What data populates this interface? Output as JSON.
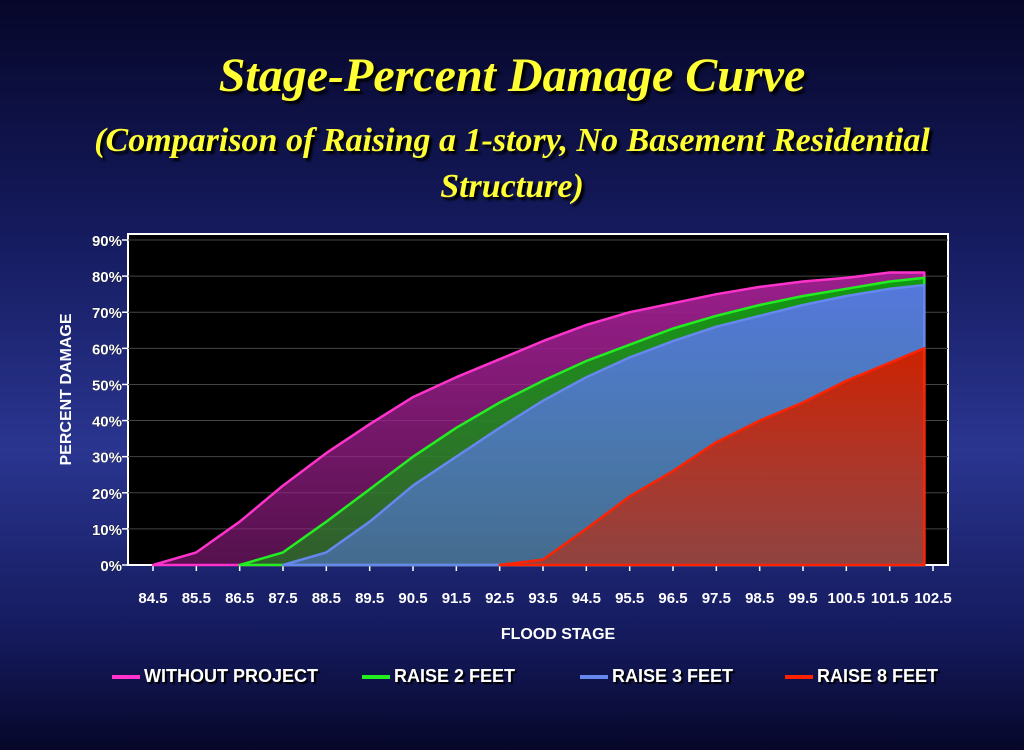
{
  "title": "Stage-Percent Damage Curve",
  "subtitle": "(Comparison of Raising a 1-story, No Basement Residential Structure)",
  "chart_data": {
    "type": "area",
    "title": "Stage-Percent Damage Curve",
    "subtitle": "(Comparison of Raising a 1-story, No Basement Residential Structure)",
    "xlabel": "FLOOD STAGE",
    "ylabel": "PERCENT DAMAGE",
    "categories": [
      "84.5",
      "85.5",
      "86.5",
      "87.5",
      "88.5",
      "89.5",
      "90.5",
      "91.5",
      "92.5",
      "93.5",
      "94.5",
      "95.5",
      "96.5",
      "97.5",
      "98.5",
      "99.5",
      "100.5",
      "101.5",
      "102.5"
    ],
    "y_ticks": [
      "0%",
      "10%",
      "20%",
      "30%",
      "40%",
      "50%",
      "60%",
      "70%",
      "80%",
      "90%"
    ],
    "ylim": [
      0,
      90
    ],
    "grid": true,
    "legend_position": "bottom",
    "series": [
      {
        "name": "WITHOUT PROJECT",
        "color": "#ff33cc",
        "fill": "#9b1f8c",
        "points": [
          [
            84.5,
            0
          ],
          [
            85.5,
            3.5
          ],
          [
            86.5,
            12
          ],
          [
            87.5,
            22
          ],
          [
            88.5,
            31
          ],
          [
            89.5,
            39
          ],
          [
            90.5,
            46.5
          ],
          [
            91.5,
            52
          ],
          [
            92.5,
            57
          ],
          [
            93.5,
            62
          ],
          [
            94.5,
            66.5
          ],
          [
            95.5,
            70
          ],
          [
            96.5,
            72.5
          ],
          [
            97.5,
            75
          ],
          [
            98.5,
            77
          ],
          [
            99.5,
            78.5
          ],
          [
            100.5,
            79.5
          ],
          [
            101.5,
            81
          ],
          [
            102.3,
            81
          ]
        ]
      },
      {
        "name": "RAISE 2 FEET",
        "color": "#22ee22",
        "fill": "#119911",
        "points": [
          [
            86.5,
            0
          ],
          [
            87.5,
            3.5
          ],
          [
            88.5,
            12
          ],
          [
            89.5,
            21
          ],
          [
            90.5,
            30
          ],
          [
            91.5,
            38
          ],
          [
            92.5,
            45
          ],
          [
            93.5,
            51
          ],
          [
            94.5,
            56.5
          ],
          [
            95.5,
            61
          ],
          [
            96.5,
            65.5
          ],
          [
            97.5,
            69
          ],
          [
            98.5,
            72
          ],
          [
            99.5,
            74.5
          ],
          [
            100.5,
            76.5
          ],
          [
            101.5,
            78.5
          ],
          [
            102.3,
            79.5
          ]
        ]
      },
      {
        "name": "RAISE 3 FEET",
        "color": "#6688ee",
        "fill": "#5577dd",
        "points": [
          [
            87.5,
            0
          ],
          [
            88.5,
            3.5
          ],
          [
            89.5,
            12
          ],
          [
            90.5,
            22
          ],
          [
            91.5,
            30
          ],
          [
            92.5,
            38
          ],
          [
            93.5,
            45.5
          ],
          [
            94.5,
            52
          ],
          [
            95.5,
            57.5
          ],
          [
            96.5,
            62
          ],
          [
            97.5,
            66
          ],
          [
            98.5,
            69
          ],
          [
            99.5,
            72
          ],
          [
            100.5,
            74.5
          ],
          [
            101.5,
            76.5
          ],
          [
            102.3,
            77.5
          ]
        ]
      },
      {
        "name": "RAISE 8 FEET",
        "color": "#ff2200",
        "fill": "#cc2200",
        "points": [
          [
            92.5,
            0
          ],
          [
            93.5,
            1.5
          ],
          [
            94.5,
            10
          ],
          [
            95.5,
            19
          ],
          [
            96.5,
            26
          ],
          [
            97.5,
            34
          ],
          [
            98.5,
            40
          ],
          [
            99.5,
            45
          ],
          [
            100.5,
            51
          ],
          [
            101.5,
            56
          ],
          [
            102.3,
            60
          ]
        ]
      }
    ]
  }
}
